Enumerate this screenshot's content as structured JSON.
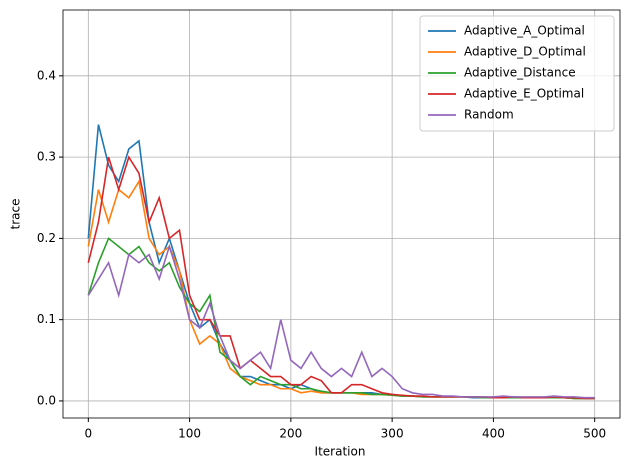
{
  "chart_data": {
    "type": "line",
    "x_label": "Iteration",
    "y_label": "trace",
    "x": [
      0,
      10,
      20,
      30,
      40,
      50,
      60,
      70,
      80,
      90,
      100,
      110,
      120,
      130,
      140,
      150,
      160,
      170,
      180,
      190,
      200,
      210,
      220,
      230,
      240,
      250,
      260,
      270,
      280,
      290,
      300,
      310,
      320,
      330,
      340,
      350,
      360,
      370,
      380,
      390,
      400,
      410,
      420,
      430,
      440,
      450,
      460,
      470,
      480,
      490,
      500
    ],
    "series": [
      {
        "name": "Adaptive_A_Optimal",
        "color": "#1f77b4",
        "values": [
          0.2,
          0.34,
          0.29,
          0.27,
          0.31,
          0.32,
          0.22,
          0.17,
          0.2,
          0.16,
          0.12,
          0.09,
          0.1,
          0.07,
          0.05,
          0.03,
          0.03,
          0.025,
          0.02,
          0.02,
          0.015,
          0.02,
          0.015,
          0.01,
          0.01,
          0.01,
          0.01,
          0.01,
          0.01,
          0.008,
          0.008,
          0.006,
          0.006,
          0.005,
          0.005,
          0.005,
          0.005,
          0.005,
          0.004,
          0.004,
          0.004,
          0.004,
          0.004,
          0.004,
          0.004,
          0.004,
          0.004,
          0.004,
          0.003,
          0.003,
          0.003
        ]
      },
      {
        "name": "Adaptive_D_Optimal",
        "color": "#ff7f0e",
        "values": [
          0.19,
          0.26,
          0.22,
          0.26,
          0.25,
          0.27,
          0.2,
          0.18,
          0.19,
          0.16,
          0.1,
          0.07,
          0.08,
          0.07,
          0.04,
          0.03,
          0.025,
          0.02,
          0.02,
          0.015,
          0.015,
          0.01,
          0.012,
          0.01,
          0.01,
          0.01,
          0.01,
          0.008,
          0.008,
          0.008,
          0.007,
          0.006,
          0.006,
          0.005,
          0.005,
          0.005,
          0.005,
          0.005,
          0.005,
          0.004,
          0.004,
          0.004,
          0.004,
          0.004,
          0.004,
          0.004,
          0.004,
          0.004,
          0.003,
          0.003,
          0.003
        ]
      },
      {
        "name": "Adaptive_Distance",
        "color": "#2ca02c",
        "values": [
          0.13,
          0.17,
          0.2,
          0.19,
          0.18,
          0.19,
          0.17,
          0.16,
          0.17,
          0.14,
          0.12,
          0.11,
          0.13,
          0.06,
          0.05,
          0.03,
          0.02,
          0.03,
          0.025,
          0.02,
          0.02,
          0.015,
          0.015,
          0.012,
          0.01,
          0.01,
          0.01,
          0.01,
          0.008,
          0.008,
          0.007,
          0.006,
          0.006,
          0.005,
          0.005,
          0.005,
          0.005,
          0.005,
          0.005,
          0.004,
          0.004,
          0.004,
          0.004,
          0.004,
          0.004,
          0.004,
          0.004,
          0.004,
          0.003,
          0.003,
          0.003
        ]
      },
      {
        "name": "Adaptive_E_Optimal",
        "color": "#d62728",
        "values": [
          0.17,
          0.22,
          0.3,
          0.26,
          0.3,
          0.28,
          0.22,
          0.25,
          0.2,
          0.21,
          0.13,
          0.1,
          0.1,
          0.08,
          0.08,
          0.04,
          0.05,
          0.04,
          0.03,
          0.03,
          0.02,
          0.02,
          0.03,
          0.025,
          0.01,
          0.01,
          0.02,
          0.02,
          0.015,
          0.01,
          0.008,
          0.007,
          0.006,
          0.006,
          0.005,
          0.005,
          0.005,
          0.005,
          0.005,
          0.005,
          0.004,
          0.004,
          0.005,
          0.004,
          0.004,
          0.004,
          0.005,
          0.004,
          0.004,
          0.003,
          0.003
        ]
      },
      {
        "name": "Random",
        "color": "#9467bd",
        "values": [
          0.13,
          0.15,
          0.17,
          0.13,
          0.18,
          0.17,
          0.18,
          0.15,
          0.19,
          0.15,
          0.1,
          0.09,
          0.12,
          0.08,
          0.05,
          0.04,
          0.05,
          0.06,
          0.04,
          0.1,
          0.05,
          0.04,
          0.06,
          0.04,
          0.03,
          0.04,
          0.03,
          0.06,
          0.03,
          0.04,
          0.03,
          0.015,
          0.01,
          0.008,
          0.008,
          0.006,
          0.006,
          0.005,
          0.005,
          0.005,
          0.005,
          0.006,
          0.005,
          0.005,
          0.005,
          0.005,
          0.006,
          0.005,
          0.005,
          0.004,
          0.004
        ]
      }
    ],
    "xlim": [
      -25,
      525
    ],
    "ylim": [
      -0.021,
      0.481
    ],
    "xticks": [
      0,
      100,
      200,
      300,
      400,
      500
    ],
    "yticks": [
      {
        "value": 0,
        "label": "0.0"
      },
      0.1,
      0.2,
      0.3,
      0.4
    ],
    "grid": true,
    "legend": "upper right"
  }
}
